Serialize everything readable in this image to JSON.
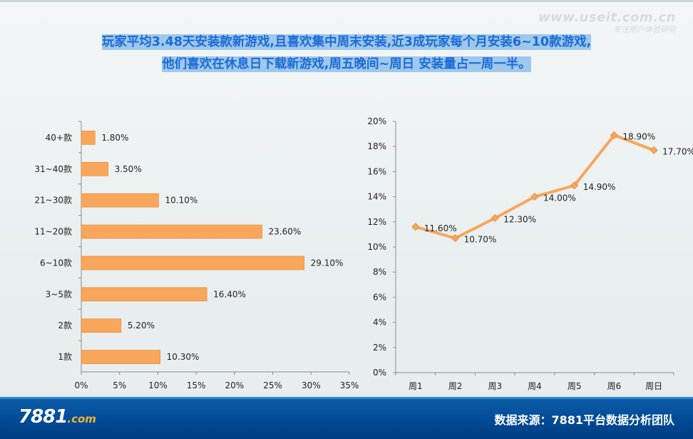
{
  "headline": {
    "line1": "玩家平均3.48天安装款新游戏,且喜欢集中周末安装,近3成玩家每个月安装6~10款游戏,",
    "line2": "他们喜欢在休息日下载新游戏,周五晚间~周日 安装量占一周一半。"
  },
  "watermark": {
    "url": "www.useit.com.cn",
    "sub": "专注用户体验研究"
  },
  "footer": {
    "logo_num": "7881",
    "logo_com": ".com",
    "source": "数据来源：7881平台数据分析团队"
  },
  "colors": {
    "bar": "#f8a65b",
    "line": "#f8a65b",
    "headline": "#1b6ad6",
    "footer": "#004a96"
  },
  "chart_data": [
    {
      "type": "bar",
      "orientation": "horizontal",
      "title": "",
      "categories": [
        "40+款",
        "31~40款",
        "21~30款",
        "11~20款",
        "6~10款",
        "3~5款",
        "2款",
        "1款"
      ],
      "values": [
        1.8,
        3.5,
        10.1,
        23.6,
        29.1,
        16.4,
        5.2,
        10.3
      ],
      "labels": [
        "1.80%",
        "3.50%",
        "10.10%",
        "23.60%",
        "29.10%",
        "16.40%",
        "5.20%",
        "10.30%"
      ],
      "xlim": [
        0,
        35
      ],
      "xticks": [
        "0%",
        "5%",
        "10%",
        "15%",
        "20%",
        "25%",
        "30%",
        "35%"
      ],
      "xlabel": "",
      "ylabel": ""
    },
    {
      "type": "line",
      "title": "",
      "categories": [
        "周1",
        "周2",
        "周3",
        "周4",
        "周5",
        "周6",
        "周日"
      ],
      "values": [
        11.6,
        10.7,
        12.3,
        14.0,
        14.9,
        18.9,
        17.7
      ],
      "labels": [
        "11.60%",
        "10.70%",
        "12.30%",
        "14.00%",
        "14.90%",
        "18.90%",
        "17.70%"
      ],
      "ylim": [
        0,
        20
      ],
      "yticks": [
        "0%",
        "2%",
        "4%",
        "6%",
        "8%",
        "10%",
        "12%",
        "14%",
        "16%",
        "18%",
        "20%"
      ],
      "xlabel": "",
      "ylabel": ""
    }
  ]
}
